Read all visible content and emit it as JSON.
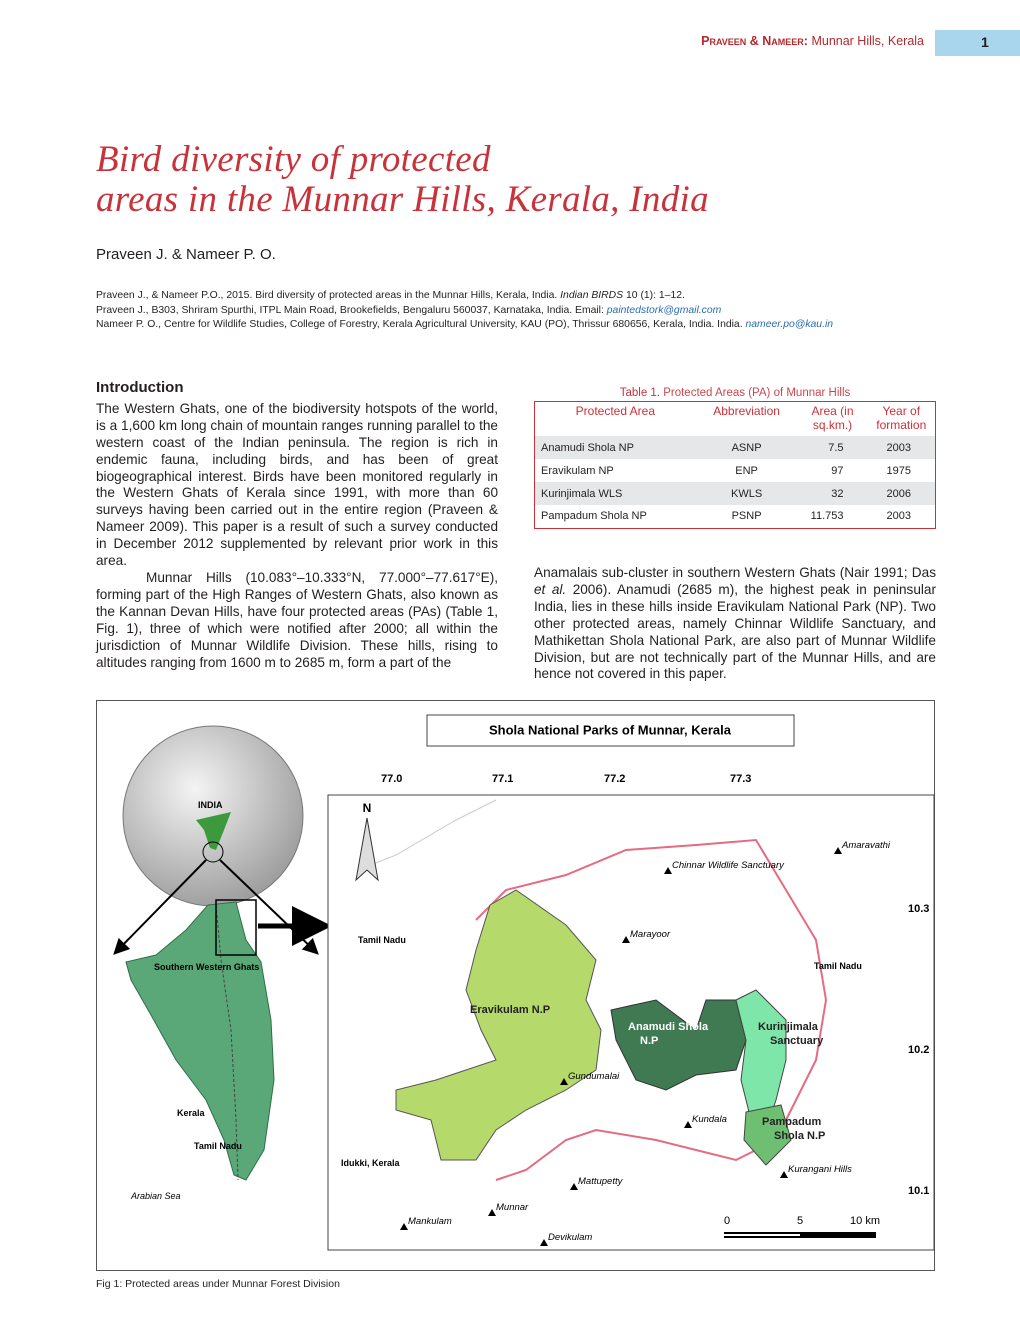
{
  "header": {
    "running_authors": "Praveen & Nameer:",
    "running_title": "Munnar Hills, Kerala",
    "page_number": "1"
  },
  "title": {
    "line1": "Bird diversity of protected",
    "line2": "areas in the Munnar Hills, Kerala, India"
  },
  "authors": "Praveen J. & Nameer P. O.",
  "citation": {
    "text": "Praveen J., & Nameer P.O., 2015. Bird diversity of protected areas in the Munnar Hills, Kerala, India.",
    "journal": "Indian BIRDS",
    "volume": "10 (1): 1–12."
  },
  "affiliations": [
    {
      "text": "Praveen J., B303, Shriram Spurthi, ITPL Main Road, Brookefields, Bengaluru 560037, Karnataka, India. Email:",
      "email": "paintedstork@gmail.com"
    },
    {
      "text": "Nameer P. O., Centre for Wildlife Studies, College of Forestry, Kerala Agricultural University, KAU (PO), Thrissur 680656, Kerala, India. India.",
      "email": "nameer.po@kau.in"
    }
  ],
  "introduction": {
    "heading": "Introduction",
    "paragraphs": [
      "The Western Ghats, one of the biodiversity hotspots of the world, is a 1,600 km long chain of mountain ranges running parallel to the western coast of the Indian peninsula. The region is rich in endemic fauna, including birds, and has been of great biogeographical interest. Birds have been monitored regularly in the Western Ghats of Kerala since 1991, with more than 60 surveys having been carried out in the entire region (Praveen & Nameer 2009). This paper is a result of such a survey conducted in December 2012 supplemented by relevant prior work in this area.",
      "Munnar Hills (10.083°–10.333°N, 77.000°–77.617°E), forming part of the High Ranges of Western Ghats, also known as the Kannan Devan Hills, have four protected areas (PAs) (Table 1, Fig. 1), three of which were notified after 2000; all within the jurisdiction of Munnar Wildlife Division. These hills, rising to altitudes ranging from 1600 m to 2685 m, form a part of the"
    ],
    "continuation": {
      "before": "Anamalais sub-cluster in southern Western Ghats (Nair 1991; Das",
      "italic": "et al.",
      "after": "2006). Anamudi (2685 m), the highest peak in peninsular India, lies in these hills inside Eravikulam National Park (NP). Two other protected areas, namely Chinnar Wildlife Sanctuary, and Mathikettan Shola National Park, are also part of Munnar Wildlife Division, but are not technically part of the Munnar Hills, and are hence not covered in this paper."
    }
  },
  "table": {
    "label": "Table 1.",
    "caption": "Protected Areas (PA) of Munnar Hills",
    "headers": [
      "Protected Area",
      "Abbreviation",
      "Area (in sq.km.)",
      "Year of formation"
    ],
    "rows": [
      [
        "Anamudi Shola NP",
        "ASNP",
        7.5,
        2003
      ],
      [
        "Eravikulam NP",
        "ENP",
        97,
        1975
      ],
      [
        "Kurinjimala WLS",
        "KWLS",
        32,
        2006
      ],
      [
        "Pampadum Shola NP",
        "PSNP",
        11.753,
        2003
      ]
    ]
  },
  "figure": {
    "caption": "Fig 1: Protected areas under Munnar Forest Division",
    "map_title": "Shola National Parks of Munnar, Kerala",
    "longitudes": [
      "77.0",
      "77.1",
      "77.2",
      "77.3"
    ],
    "latitudes": [
      "10.3",
      "10.2",
      "10.1"
    ],
    "north": "N",
    "scale": [
      "0",
      "5",
      "10 km"
    ],
    "inset_labels": [
      "INDIA",
      "Southern Western Ghats",
      "Kerala",
      "Tamil Nadu",
      "Arabian Sea"
    ],
    "regions": [
      "Tamil Nadu",
      "Tamil Nadu",
      "Idukki, Kerala"
    ],
    "parks": [
      [
        "Eravikulam N.P"
      ],
      [
        "Anamudi Shola",
        "N.P"
      ],
      [
        "Kurinjimala",
        "Sanctuary"
      ],
      [
        "Pampadum",
        "Shola N.P"
      ]
    ],
    "places": [
      "Chinnar Wildlife Sanctuary",
      "Amaravathi",
      "Marayoor",
      "Gundumalai",
      "Kundala",
      "Mattupetty",
      "Kurangani Hills",
      "Munnar",
      "Mankulam",
      "Devikulam"
    ]
  }
}
